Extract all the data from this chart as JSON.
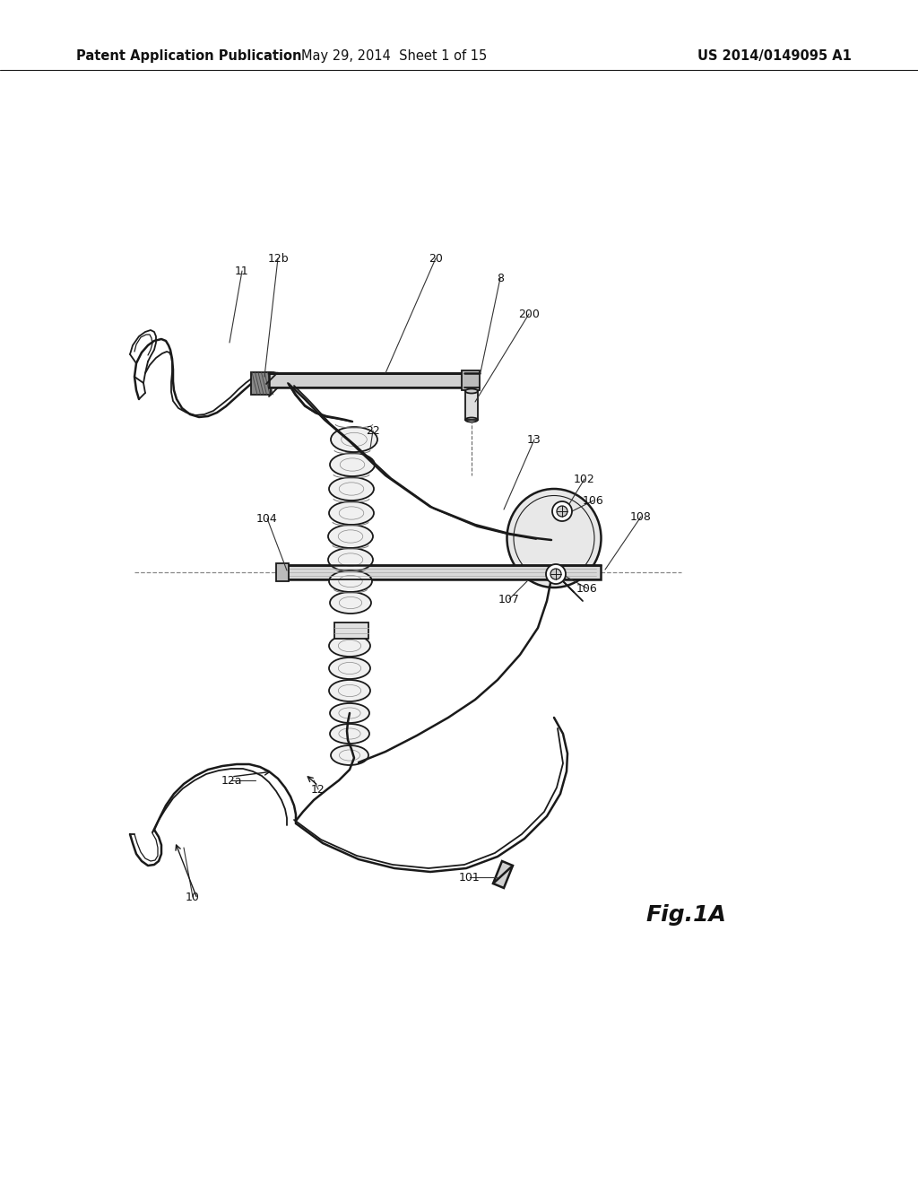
{
  "background_color": "#ffffff",
  "header_left": "Patent Application Publication",
  "header_center": "May 29, 2014  Sheet 1 of 15",
  "header_right": "US 2014/0149095 A1",
  "header_fontsize": 10.5,
  "fig_label": "Fig.1A",
  "fig_label_fontsize": 18,
  "line_color": "#1a1a1a",
  "annotation_fontsize": 9
}
